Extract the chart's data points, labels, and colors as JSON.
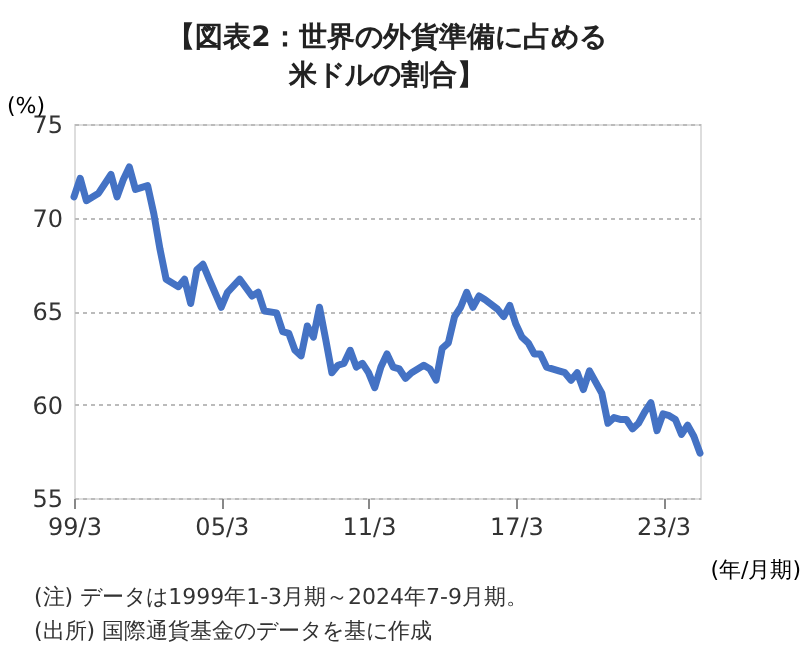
{
  "chart_data": {
    "type": "line",
    "title": "【図表2：世界の外貨準備に占める米ドルの割合】",
    "ylabel": "(%)",
    "xlabel": "(年/月期)",
    "annotations": [
      "(注) データは1999年1-3月期～2024年7-9月期。",
      "(出所) 国際通貨基金のデータを基に作成"
    ],
    "x": [
      "1999-03",
      "1999-06",
      "1999-09",
      "2000-03",
      "2000-09",
      "2000-12",
      "2001-03",
      "2001-06",
      "2001-09",
      "2002-03",
      "2002-06",
      "2002-09",
      "2002-12",
      "2003-06",
      "2003-09",
      "2003-12",
      "2004-03",
      "2004-06",
      "2004-09",
      "2005-03",
      "2005-06",
      "2005-12",
      "2006-06",
      "2006-09",
      "2006-12",
      "2007-06",
      "2007-09",
      "2007-12",
      "2008-03",
      "2008-06",
      "2008-09",
      "2008-12",
      "2009-03",
      "2009-06",
      "2009-09",
      "2009-12",
      "2010-03",
      "2010-06",
      "2010-09",
      "2010-12",
      "2011-03",
      "2011-06",
      "2011-09",
      "2011-12",
      "2012-03",
      "2012-06",
      "2012-09",
      "2012-12",
      "2013-06",
      "2013-09",
      "2013-12",
      "2014-03",
      "2014-06",
      "2014-09",
      "2014-12",
      "2015-03",
      "2015-06",
      "2015-09",
      "2015-12",
      "2016-06",
      "2016-09",
      "2016-12",
      "2017-03",
      "2017-06",
      "2017-09",
      "2017-12",
      "2018-03",
      "2018-06",
      "2018-12",
      "2019-03",
      "2019-06",
      "2019-09",
      "2019-12",
      "2020-03",
      "2020-09",
      "2020-12",
      "2021-03",
      "2021-06",
      "2021-09",
      "2021-12",
      "2022-03",
      "2022-06",
      "2022-09",
      "2022-12",
      "2023-03",
      "2023-06",
      "2023-09",
      "2023-12",
      "2024-03",
      "2024-06",
      "2024-09"
    ],
    "series": [
      {
        "color": "#4472c4",
        "values": [
          71.1,
          72.1,
          70.9,
          71.3,
          72.3,
          71.1,
          72.0,
          72.7,
          71.5,
          71.7,
          70.2,
          68.3,
          66.7,
          66.3,
          66.7,
          65.4,
          67.2,
          67.5,
          66.7,
          65.2,
          66.0,
          66.7,
          65.8,
          66.0,
          65.0,
          64.9,
          63.9,
          63.8,
          62.9,
          62.6,
          64.2,
          63.6,
          65.2,
          63.5,
          61.7,
          62.1,
          62.2,
          62.9,
          62.0,
          62.2,
          61.7,
          60.9,
          62.0,
          62.7,
          62.0,
          61.9,
          61.4,
          61.7,
          62.1,
          61.9,
          61.3,
          63.0,
          63.3,
          64.7,
          65.2,
          66.0,
          65.2,
          65.8,
          65.6,
          65.1,
          64.7,
          65.3,
          64.3,
          63.6,
          63.3,
          62.7,
          62.7,
          62.0,
          61.8,
          61.7,
          61.3,
          61.7,
          60.8,
          61.8,
          60.6,
          59.0,
          59.3,
          59.2,
          59.2,
          58.7,
          59.0,
          59.6,
          60.1,
          58.6,
          59.5,
          59.4,
          59.2,
          58.4,
          58.9,
          58.3,
          57.4
        ]
      }
    ],
    "xlim": [
      "1999-03",
      "2024-09"
    ],
    "xticks": [
      {
        "value": "1999-03",
        "label": "99/3"
      },
      {
        "value": "2005-03",
        "label": "05/3"
      },
      {
        "value": "2011-03",
        "label": "11/3"
      },
      {
        "value": "2017-03",
        "label": "17/3"
      },
      {
        "value": "2023-03",
        "label": "23/3"
      }
    ],
    "ylim": [
      55,
      75
    ],
    "yticks": [
      55,
      60,
      65,
      70,
      75
    ],
    "grid": "y",
    "line_style": "solid",
    "marker": "none"
  }
}
